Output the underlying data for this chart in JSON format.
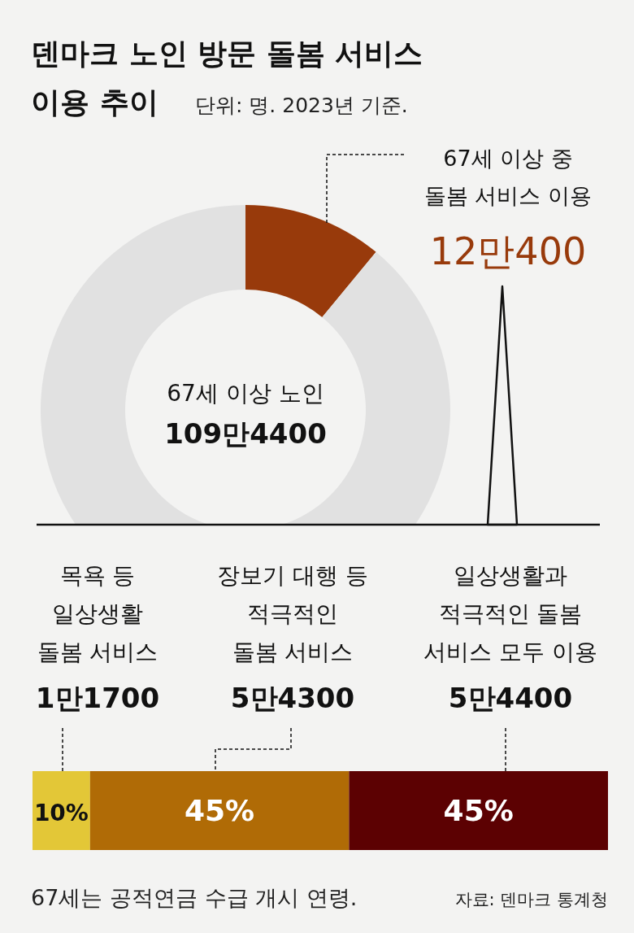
{
  "chart_data": [
    {
      "type": "donut",
      "title": "덴마크 노인 방문 돌봄 서비스\n이용 추이",
      "subtitle": "단위: 명. 2023년 기준.",
      "categories": [
        "67세 이상 중\n돌봄 서비스 이용",
        null
      ],
      "values": [
        11,
        89
      ],
      "colors": [
        "#983a0b",
        "#e1e1e1"
      ],
      "annotations": [
        "12만400",
        "67세 이상 노인",
        "109만4400"
      ]
    },
    {
      "type": "bar",
      "orientation": "horizontal",
      "stacked": true,
      "categories": [
        null
      ],
      "xlim": [
        0,
        100
      ],
      "tick_labels": false,
      "series": [
        {
          "color": "#e3c737",
          "values": [
            10
          ],
          "value_labels": [
            "10%"
          ]
        },
        {
          "color": "#b06b06",
          "values": [
            45
          ],
          "value_labels": [
            "45%"
          ]
        },
        {
          "color": "#5c0102",
          "values": [
            45
          ],
          "value_labels": [
            "45%"
          ]
        }
      ],
      "annotations": [
        "1만1700",
        "5만4300",
        "5만4400",
        "67세는 공적연금 수급 개시 연령.",
        "자료: 덴마크 통계청",
        "목욕 등\n일상생활\n돌봄 서비스",
        "장보기 대행 등\n적극적인\n돌봄 서비스",
        "일상생활과\n적극적인 돌봄\n서비스 모두 이용"
      ]
    }
  ]
}
